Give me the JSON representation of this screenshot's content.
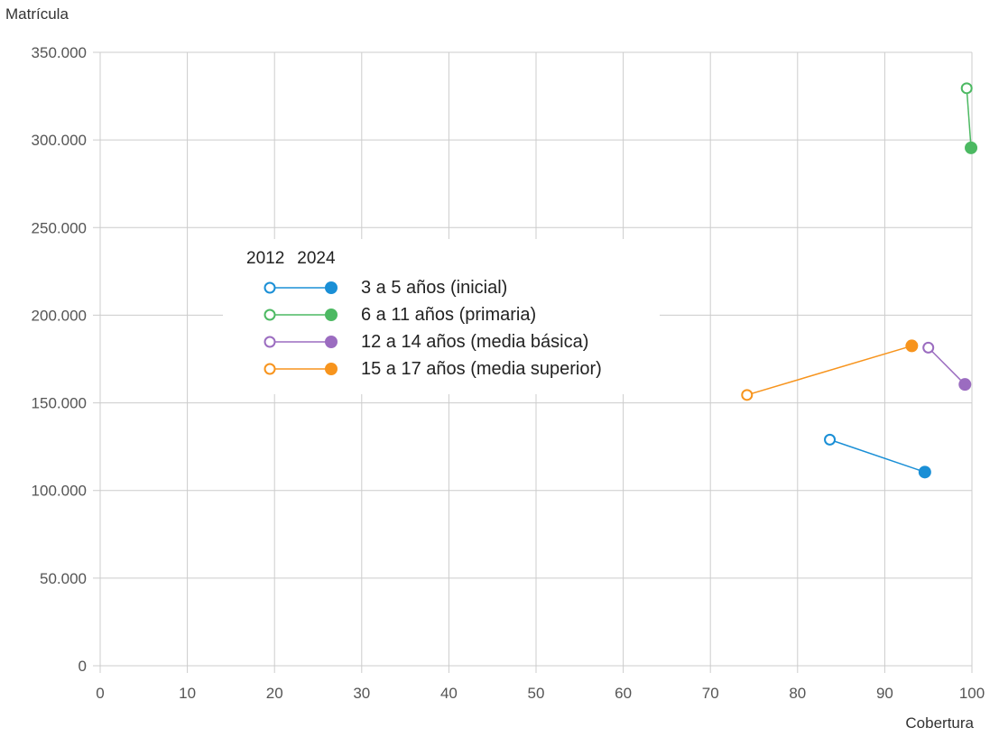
{
  "chart_data": {
    "type": "scatter",
    "xlabel": "Cobertura",
    "ylabel": "Matrícula",
    "xlim": [
      0,
      100
    ],
    "ylim": [
      0,
      350000
    ],
    "xticks": [
      0,
      10,
      20,
      30,
      40,
      50,
      60,
      70,
      80,
      90,
      100
    ],
    "yticks": [
      0,
      50000,
      100000,
      150000,
      200000,
      250000,
      300000,
      350000
    ],
    "xtick_labels": [
      "0",
      "10",
      "20",
      "30",
      "40",
      "50",
      "60",
      "70",
      "80",
      "90",
      "100"
    ],
    "ytick_labels": [
      "0",
      "50.000",
      "100.000",
      "150.000",
      "200.000",
      "250.000",
      "300.000",
      "350.000"
    ],
    "grid": true,
    "legend": {
      "placement": "center-left",
      "years": [
        "2012",
        "2024"
      ],
      "note": "hollow marker = 2012, filled marker = 2024"
    },
    "series": [
      {
        "name": "3 a 5 años (inicial)",
        "color": "#1a8fd6",
        "points": [
          {
            "year": "2012",
            "x": 83.7,
            "y": 129000
          },
          {
            "year": "2024",
            "x": 94.6,
            "y": 110500
          }
        ]
      },
      {
        "name": "6 a 11 años (primaria)",
        "color": "#4cb962",
        "points": [
          {
            "year": "2012",
            "x": 99.4,
            "y": 329500
          },
          {
            "year": "2024",
            "x": 99.9,
            "y": 295500
          }
        ]
      },
      {
        "name": "12 a 14 años (media básica)",
        "color": "#9b6cc0",
        "points": [
          {
            "year": "2012",
            "x": 95.0,
            "y": 181500
          },
          {
            "year": "2024",
            "x": 99.2,
            "y": 160500
          }
        ]
      },
      {
        "name": "15 a 17 años (media superior)",
        "color": "#f7941d",
        "points": [
          {
            "year": "2012",
            "x": 74.2,
            "y": 154500
          },
          {
            "year": "2024",
            "x": 93.1,
            "y": 182500
          }
        ]
      }
    ]
  }
}
